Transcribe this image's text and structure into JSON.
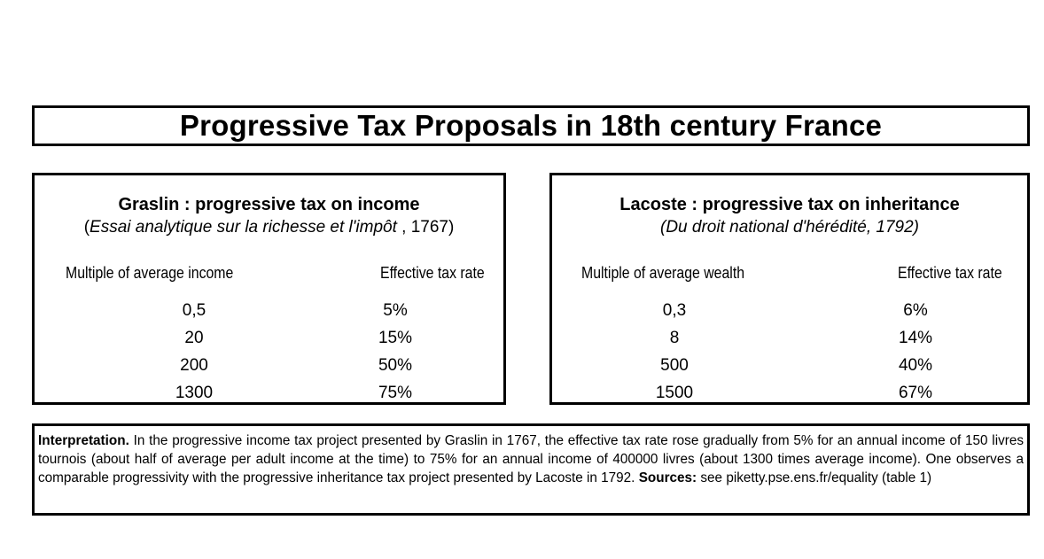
{
  "title": "Progressive Tax Proposals in 18th century France",
  "left_panel": {
    "title": "Graslin : progressive tax on income",
    "subtitle_open": "(",
    "subtitle_italic": "Essai analytique sur la richesse et l'impôt",
    "subtitle_rest": " , 1767)",
    "col1_header": "Multiple of average income",
    "col2_header": "Effective tax rate",
    "rows": [
      {
        "multiple": "0,5",
        "rate": "5%"
      },
      {
        "multiple": "20",
        "rate": "15%"
      },
      {
        "multiple": "200",
        "rate": "50%"
      },
      {
        "multiple": "1300",
        "rate": "75%"
      }
    ]
  },
  "right_panel": {
    "title": "Lacoste : progressive tax on inheritance",
    "subtitle": "(Du droit national d'hérédité, 1792)",
    "col1_header": "Multiple of average wealth",
    "col2_header": "Effective tax rate",
    "rows": [
      {
        "multiple": "0,3",
        "rate": "6%"
      },
      {
        "multiple": "8",
        "rate": "14%"
      },
      {
        "multiple": "500",
        "rate": "40%"
      },
      {
        "multiple": "1500",
        "rate": "67%"
      }
    ]
  },
  "interpretation": {
    "label": "Interpretation.",
    "body": " In the progressive income tax project presented by Graslin in 1767, the effective tax rate rose gradually from 5% for an annual income of 150 livres tournois (about half of average per adult income at the time) to 75% for an annual income of 400000 livres (about 1300 times average income). One observes a comparable progressivity with the progressive inheritance tax project presented by Lacoste in 1792.  ",
    "sources_label": "Sources:",
    "sources_text": " see piketty.pse.ens.fr/equality (table 1)"
  }
}
